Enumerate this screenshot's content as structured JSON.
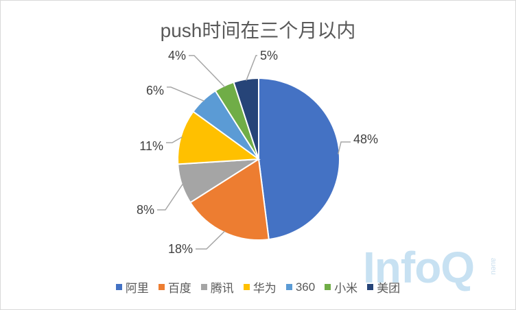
{
  "chart_data": {
    "type": "pie",
    "title": "push时间在三个月以内",
    "categories": [
      "阿里",
      "百度",
      "腾讯",
      "华为",
      "360",
      "小米",
      "美团"
    ],
    "values": [
      48,
      18,
      8,
      11,
      6,
      4,
      5
    ],
    "labels": [
      "48%",
      "18%",
      "8%",
      "11%",
      "6%",
      "4%",
      "5%"
    ],
    "colors": [
      "#4472C4",
      "#ED7D31",
      "#A5A5A5",
      "#FFC000",
      "#5B9BD5",
      "#70AD47",
      "#264478"
    ],
    "legend_position": "bottom"
  },
  "watermark": {
    "text": "InfoQ",
    "sub": "aueu"
  }
}
